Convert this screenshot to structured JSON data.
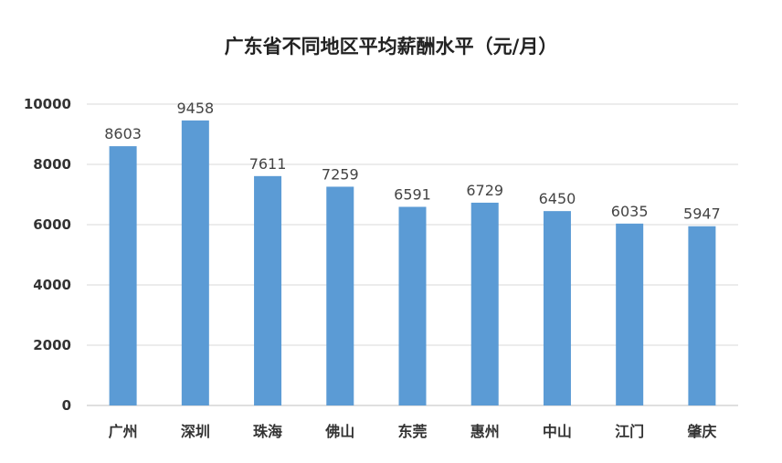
{
  "chart_data": {
    "type": "bar",
    "title": "广东省不同地区平均薪酬水平（元/月）",
    "xlabel": "",
    "ylabel": "",
    "categories": [
      "广州",
      "深圳",
      "珠海",
      "佛山",
      "东莞",
      "惠州",
      "中山",
      "江门",
      "肇庆"
    ],
    "values": [
      8603,
      9458,
      7611,
      7259,
      6591,
      6729,
      6450,
      6035,
      5947
    ],
    "data_labels": [
      "8603",
      "9458",
      "7611",
      "7259",
      "6591",
      "6729",
      "6450",
      "6035",
      "5947"
    ],
    "ylim": [
      0,
      10000
    ],
    "yticks": [
      0,
      2000,
      4000,
      6000,
      8000,
      10000
    ],
    "ytick_labels": [
      "0",
      "2000",
      "4000",
      "6000",
      "8000",
      "10000"
    ],
    "grid": true,
    "legend": "none",
    "bar_color": "#5b9bd5"
  }
}
